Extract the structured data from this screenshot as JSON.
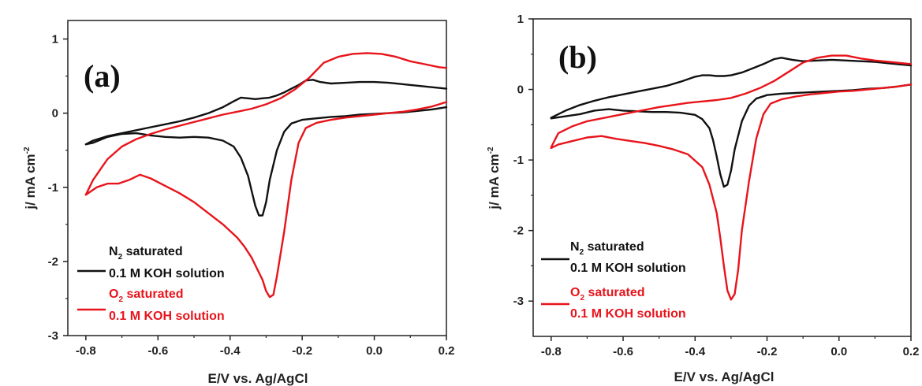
{
  "chart_data": [
    {
      "type": "line",
      "panel_label": "(a)",
      "xlabel": "E/V vs. Ag/AgCl",
      "ylabel": {
        "main": "j/ mA cm",
        "sup": "-2"
      },
      "xlim": [
        -0.85,
        0.2
      ],
      "ylim": [
        -3,
        1.25
      ],
      "xticks": [
        "-0.8",
        "-0.6",
        "-0.4",
        "-0.2",
        "0.0",
        "0.2"
      ],
      "xtick_values": [
        -0.8,
        -0.6,
        -0.4,
        -0.2,
        0.0,
        0.2
      ],
      "yticks": [
        "1",
        "0",
        "-1",
        "-2",
        "-3"
      ],
      "ytick_values": [
        1,
        0,
        -1,
        -2,
        -3
      ],
      "legend": [
        {
          "line1": "N",
          "sub": "2",
          "line1_rest": " saturated",
          "line2": "0.1 M KOH solution",
          "color": "#111111"
        },
        {
          "line1": "O",
          "sub": "2",
          "line1_rest": " saturated",
          "line2": "0.1 M KOH solution",
          "color": "#e8141b"
        }
      ],
      "series": [
        {
          "color": "#111111",
          "x": [
            -0.8,
            -0.78,
            -0.74,
            -0.7,
            -0.66,
            -0.62,
            -0.58,
            -0.54,
            -0.5,
            -0.46,
            -0.42,
            -0.39,
            -0.37,
            -0.35,
            -0.33,
            -0.31,
            -0.29,
            -0.27,
            -0.25,
            -0.23,
            -0.21,
            -0.19,
            -0.17,
            -0.15,
            -0.12,
            -0.08,
            -0.04,
            0.0,
            0.04,
            0.08,
            0.12,
            0.16,
            0.2
          ],
          "y": [
            -0.42,
            -0.37,
            -0.31,
            -0.27,
            -0.23,
            -0.19,
            -0.15,
            -0.11,
            -0.06,
            0.0,
            0.08,
            0.16,
            0.21,
            0.2,
            0.19,
            0.2,
            0.21,
            0.24,
            0.28,
            0.33,
            0.38,
            0.44,
            0.45,
            0.42,
            0.4,
            0.41,
            0.42,
            0.42,
            0.41,
            0.39,
            0.37,
            0.35,
            0.33
          ]
        },
        {
          "color": "#111111",
          "x": [
            0.2,
            0.16,
            0.12,
            0.08,
            0.04,
            0.0,
            -0.04,
            -0.08,
            -0.12,
            -0.16,
            -0.2,
            -0.23,
            -0.25,
            -0.27,
            -0.29,
            -0.3,
            -0.31,
            -0.32,
            -0.33,
            -0.34,
            -0.35,
            -0.37,
            -0.39,
            -0.42,
            -0.46,
            -0.5,
            -0.54,
            -0.58,
            -0.62,
            -0.66,
            -0.7,
            -0.74,
            -0.78,
            -0.8
          ],
          "y": [
            0.08,
            0.05,
            0.03,
            0.01,
            0.0,
            -0.01,
            -0.02,
            -0.04,
            -0.05,
            -0.07,
            -0.09,
            -0.14,
            -0.25,
            -0.5,
            -0.9,
            -1.2,
            -1.38,
            -1.38,
            -1.25,
            -1.05,
            -0.85,
            -0.6,
            -0.45,
            -0.37,
            -0.33,
            -0.32,
            -0.33,
            -0.32,
            -0.3,
            -0.27,
            -0.28,
            -0.32,
            -0.4,
            -0.42
          ]
        },
        {
          "color": "#e8141b",
          "x": [
            -0.8,
            -0.78,
            -0.74,
            -0.7,
            -0.66,
            -0.62,
            -0.58,
            -0.54,
            -0.5,
            -0.46,
            -0.42,
            -0.38,
            -0.34,
            -0.3,
            -0.26,
            -0.22,
            -0.18,
            -0.14,
            -0.1,
            -0.06,
            -0.02,
            0.02,
            0.06,
            0.1,
            0.14,
            0.18,
            0.2
          ],
          "y": [
            -1.1,
            -0.9,
            -0.62,
            -0.45,
            -0.35,
            -0.28,
            -0.22,
            -0.17,
            -0.12,
            -0.07,
            -0.02,
            0.02,
            0.06,
            0.12,
            0.2,
            0.32,
            0.48,
            0.68,
            0.76,
            0.8,
            0.81,
            0.8,
            0.76,
            0.7,
            0.66,
            0.62,
            0.61
          ]
        },
        {
          "color": "#e8141b",
          "x": [
            0.2,
            0.18,
            0.16,
            0.12,
            0.08,
            0.04,
            0.0,
            -0.04,
            -0.08,
            -0.12,
            -0.16,
            -0.19,
            -0.21,
            -0.23,
            -0.25,
            -0.27,
            -0.28,
            -0.29,
            -0.3,
            -0.31,
            -0.32,
            -0.34,
            -0.36,
            -0.38,
            -0.42,
            -0.46,
            -0.5,
            -0.54,
            -0.58,
            -0.62,
            -0.65,
            -0.68,
            -0.71,
            -0.74,
            -0.77,
            -0.8
          ],
          "y": [
            0.15,
            0.12,
            0.09,
            0.05,
            0.02,
            0.0,
            -0.02,
            -0.04,
            -0.06,
            -0.09,
            -0.13,
            -0.2,
            -0.4,
            -0.9,
            -1.6,
            -2.2,
            -2.45,
            -2.48,
            -2.4,
            -2.25,
            -2.15,
            -1.95,
            -1.8,
            -1.68,
            -1.5,
            -1.35,
            -1.2,
            -1.08,
            -0.98,
            -0.88,
            -0.83,
            -0.9,
            -0.95,
            -0.95,
            -1.0,
            -1.1
          ]
        }
      ]
    },
    {
      "type": "line",
      "panel_label": "(b)",
      "xlabel": "E/V vs. Ag/AgCl",
      "ylabel": {
        "main": "j/ mA cm",
        "sup": "-2"
      },
      "xlim": [
        -0.85,
        0.2
      ],
      "ylim": [
        -3.5,
        1
      ],
      "xticks": [
        "-0.8",
        "-0.6",
        "-0.4",
        "-0.2",
        "0.0",
        "0.2"
      ],
      "xtick_values": [
        -0.8,
        -0.6,
        -0.4,
        -0.2,
        0.0,
        0.2
      ],
      "yticks": [
        "1",
        "0",
        "-1",
        "-2",
        "-3"
      ],
      "ytick_values": [
        1,
        0,
        -1,
        -2,
        -3
      ],
      "legend": [
        {
          "line1": "N",
          "sub": "2",
          "line1_rest": " saturated",
          "line2": "0.1 M KOH solution",
          "color": "#111111"
        },
        {
          "line1": "O",
          "sub": "2",
          "line1_rest": " saturated",
          "line2": "0.1 M KOH solution",
          "color": "#e8141b"
        }
      ],
      "series": [
        {
          "color": "#111111",
          "x": [
            -0.8,
            -0.76,
            -0.72,
            -0.68,
            -0.64,
            -0.6,
            -0.56,
            -0.52,
            -0.48,
            -0.44,
            -0.4,
            -0.38,
            -0.36,
            -0.34,
            -0.32,
            -0.3,
            -0.27,
            -0.24,
            -0.21,
            -0.18,
            -0.16,
            -0.13,
            -0.1,
            -0.06,
            -0.02,
            0.02,
            0.06,
            0.1,
            0.14,
            0.18,
            0.2
          ],
          "y": [
            -0.4,
            -0.3,
            -0.22,
            -0.16,
            -0.11,
            -0.07,
            -0.03,
            0.01,
            0.05,
            0.11,
            0.18,
            0.2,
            0.2,
            0.19,
            0.19,
            0.2,
            0.24,
            0.3,
            0.36,
            0.43,
            0.45,
            0.42,
            0.4,
            0.41,
            0.42,
            0.41,
            0.4,
            0.39,
            0.37,
            0.35,
            0.34
          ]
        },
        {
          "color": "#111111",
          "x": [
            0.2,
            0.16,
            0.12,
            0.08,
            0.04,
            0.0,
            -0.04,
            -0.08,
            -0.12,
            -0.16,
            -0.2,
            -0.23,
            -0.25,
            -0.27,
            -0.29,
            -0.3,
            -0.31,
            -0.32,
            -0.33,
            -0.34,
            -0.35,
            -0.36,
            -0.38,
            -0.4,
            -0.44,
            -0.48,
            -0.52,
            -0.56,
            -0.6,
            -0.64,
            -0.68,
            -0.72,
            -0.76,
            -0.8
          ],
          "y": [
            0.07,
            0.04,
            0.02,
            0.01,
            -0.01,
            -0.02,
            -0.03,
            -0.04,
            -0.05,
            -0.06,
            -0.08,
            -0.13,
            -0.23,
            -0.45,
            -0.85,
            -1.15,
            -1.35,
            -1.38,
            -1.2,
            -0.95,
            -0.72,
            -0.55,
            -0.42,
            -0.36,
            -0.33,
            -0.32,
            -0.32,
            -0.31,
            -0.3,
            -0.28,
            -0.3,
            -0.35,
            -0.38,
            -0.41
          ]
        },
        {
          "color": "#e8141b",
          "x": [
            -0.8,
            -0.78,
            -0.74,
            -0.7,
            -0.66,
            -0.62,
            -0.58,
            -0.54,
            -0.5,
            -0.46,
            -0.42,
            -0.38,
            -0.34,
            -0.3,
            -0.26,
            -0.22,
            -0.18,
            -0.14,
            -0.1,
            -0.06,
            -0.02,
            0.02,
            0.06,
            0.1,
            0.14,
            0.18,
            0.2
          ],
          "y": [
            -0.82,
            -0.62,
            -0.52,
            -0.45,
            -0.41,
            -0.37,
            -0.33,
            -0.29,
            -0.25,
            -0.22,
            -0.19,
            -0.17,
            -0.15,
            -0.12,
            -0.06,
            0.02,
            0.12,
            0.25,
            0.38,
            0.45,
            0.48,
            0.48,
            0.44,
            0.41,
            0.39,
            0.37,
            0.36
          ]
        },
        {
          "color": "#e8141b",
          "x": [
            0.2,
            0.16,
            0.12,
            0.08,
            0.04,
            0.0,
            -0.04,
            -0.08,
            -0.12,
            -0.16,
            -0.19,
            -0.21,
            -0.23,
            -0.25,
            -0.27,
            -0.28,
            -0.29,
            -0.3,
            -0.31,
            -0.32,
            -0.33,
            -0.34,
            -0.36,
            -0.38,
            -0.42,
            -0.46,
            -0.5,
            -0.54,
            -0.58,
            -0.62,
            -0.66,
            -0.7,
            -0.74,
            -0.78,
            -0.8
          ],
          "y": [
            0.07,
            0.04,
            0.02,
            0.0,
            -0.02,
            -0.03,
            -0.05,
            -0.07,
            -0.1,
            -0.14,
            -0.2,
            -0.35,
            -0.7,
            -1.3,
            -2.0,
            -2.55,
            -2.9,
            -2.98,
            -2.85,
            -2.5,
            -2.1,
            -1.75,
            -1.35,
            -1.1,
            -0.92,
            -0.85,
            -0.8,
            -0.76,
            -0.73,
            -0.7,
            -0.66,
            -0.68,
            -0.73,
            -0.78,
            -0.83
          ]
        }
      ]
    }
  ]
}
